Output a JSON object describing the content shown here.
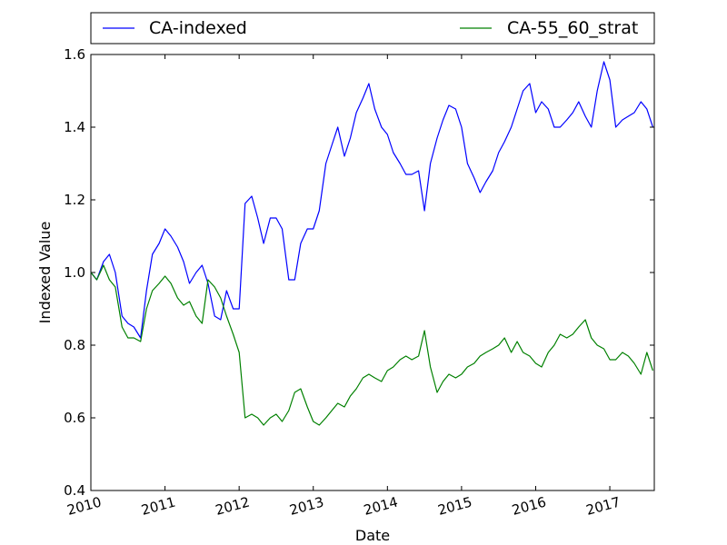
{
  "chart_data": {
    "type": "line",
    "xlabel": "Date",
    "ylabel": "Indexed Value",
    "xlim": [
      2010.0,
      2017.6
    ],
    "ylim": [
      0.4,
      1.6
    ],
    "x_ticks": [
      2010,
      2011,
      2012,
      2013,
      2014,
      2015,
      2016,
      2017
    ],
    "x_tick_labels": [
      "2010",
      "2011",
      "2012",
      "2013",
      "2014",
      "2015",
      "2016",
      "2017"
    ],
    "y_ticks": [
      0.4,
      0.6,
      0.8,
      1.0,
      1.2,
      1.4,
      1.6
    ],
    "y_tick_labels": [
      "0.4",
      "0.6",
      "0.8",
      "1.0",
      "1.2",
      "1.4",
      "1.6"
    ],
    "grid": false,
    "legend_position": "top",
    "series": [
      {
        "name": "CA-indexed",
        "color": "#0000ff",
        "x": [
          2010.0,
          2010.08,
          2010.17,
          2010.25,
          2010.33,
          2010.42,
          2010.5,
          2010.58,
          2010.67,
          2010.75,
          2010.83,
          2010.92,
          2011.0,
          2011.08,
          2011.17,
          2011.25,
          2011.33,
          2011.42,
          2011.5,
          2011.58,
          2011.67,
          2011.75,
          2011.83,
          2011.92,
          2012.0,
          2012.08,
          2012.17,
          2012.25,
          2012.33,
          2012.42,
          2012.5,
          2012.58,
          2012.67,
          2012.75,
          2012.83,
          2012.92,
          2013.0,
          2013.08,
          2013.17,
          2013.25,
          2013.33,
          2013.42,
          2013.5,
          2013.58,
          2013.67,
          2013.75,
          2013.83,
          2013.92,
          2014.0,
          2014.08,
          2014.17,
          2014.25,
          2014.33,
          2014.42,
          2014.5,
          2014.58,
          2014.67,
          2014.75,
          2014.83,
          2014.92,
          2015.0,
          2015.08,
          2015.17,
          2015.25,
          2015.33,
          2015.42,
          2015.5,
          2015.58,
          2015.67,
          2015.75,
          2015.83,
          2015.92,
          2016.0,
          2016.08,
          2016.17,
          2016.25,
          2016.33,
          2016.42,
          2016.5,
          2016.58,
          2016.67,
          2016.75,
          2016.83,
          2016.92,
          2017.0,
          2017.08,
          2017.17,
          2017.25,
          2017.33,
          2017.42,
          2017.5,
          2017.58
        ],
        "y": [
          1.0,
          0.98,
          1.03,
          1.05,
          1.0,
          0.88,
          0.86,
          0.85,
          0.82,
          0.95,
          1.05,
          1.08,
          1.12,
          1.1,
          1.07,
          1.03,
          0.97,
          1.0,
          1.02,
          0.97,
          0.88,
          0.87,
          0.95,
          0.9,
          0.9,
          1.19,
          1.21,
          1.15,
          1.08,
          1.15,
          1.15,
          1.12,
          0.98,
          0.98,
          1.08,
          1.12,
          1.12,
          1.17,
          1.3,
          1.35,
          1.4,
          1.32,
          1.37,
          1.44,
          1.48,
          1.52,
          1.45,
          1.4,
          1.38,
          1.33,
          1.3,
          1.27,
          1.27,
          1.28,
          1.17,
          1.3,
          1.37,
          1.42,
          1.46,
          1.45,
          1.4,
          1.3,
          1.26,
          1.22,
          1.25,
          1.28,
          1.33,
          1.36,
          1.4,
          1.45,
          1.5,
          1.52,
          1.44,
          1.47,
          1.45,
          1.4,
          1.4,
          1.42,
          1.44,
          1.47,
          1.43,
          1.4,
          1.5,
          1.58,
          1.53,
          1.4,
          1.42,
          1.43,
          1.44,
          1.47,
          1.45,
          1.4
        ],
        "y_note": "placeholder"
      },
      {
        "name": "CA-55_60_strat",
        "color": "#008000",
        "x": [
          2010.0,
          2010.08,
          2010.17,
          2010.25,
          2010.33,
          2010.42,
          2010.5,
          2010.58,
          2010.67,
          2010.75,
          2010.83,
          2010.92,
          2011.0,
          2011.08,
          2011.17,
          2011.25,
          2011.33,
          2011.42,
          2011.5,
          2011.58,
          2011.67,
          2011.75,
          2011.83,
          2011.92,
          2012.0,
          2012.08,
          2012.17,
          2012.25,
          2012.33,
          2012.42,
          2012.5,
          2012.58,
          2012.67,
          2012.75,
          2012.83,
          2012.92,
          2013.0,
          2013.08,
          2013.17,
          2013.25,
          2013.33,
          2013.42,
          2013.5,
          2013.58,
          2013.67,
          2013.75,
          2013.83,
          2013.92,
          2014.0,
          2014.08,
          2014.17,
          2014.25,
          2014.33,
          2014.42,
          2014.5,
          2014.58,
          2014.67,
          2014.75,
          2014.83,
          2014.92,
          2015.0,
          2015.08,
          2015.17,
          2015.25,
          2015.33,
          2015.42,
          2015.5,
          2015.58,
          2015.67,
          2015.75,
          2015.83,
          2015.92,
          2016.0,
          2016.08,
          2016.17,
          2016.25,
          2016.33,
          2016.42,
          2016.5,
          2016.58,
          2016.67,
          2016.75,
          2016.83,
          2016.92,
          2017.0,
          2017.08,
          2017.17,
          2017.25,
          2017.33,
          2017.42,
          2017.5,
          2017.58
        ],
        "y": [
          1.0,
          0.98,
          1.02,
          0.98,
          0.96,
          0.85,
          0.82,
          0.82,
          0.81,
          0.9,
          0.95,
          0.97,
          0.99,
          0.97,
          0.93,
          0.91,
          0.92,
          0.88,
          0.86,
          0.98,
          0.96,
          0.93,
          0.88,
          0.83,
          0.78,
          0.6,
          0.61,
          0.6,
          0.58,
          0.6,
          0.61,
          0.59,
          0.62,
          0.67,
          0.68,
          0.63,
          0.59,
          0.58,
          0.6,
          0.62,
          0.64,
          0.63,
          0.66,
          0.68,
          0.71,
          0.72,
          0.71,
          0.7,
          0.73,
          0.74,
          0.76,
          0.77,
          0.76,
          0.77,
          0.84,
          0.74,
          0.67,
          0.7,
          0.72,
          0.71,
          0.72,
          0.74,
          0.75,
          0.77,
          0.78,
          0.79,
          0.8,
          0.82,
          0.78,
          0.81,
          0.78,
          0.77,
          0.75,
          0.74,
          0.78,
          0.8,
          0.83,
          0.82,
          0.83,
          0.85,
          0.87,
          0.82,
          0.8,
          0.79,
          0.76,
          0.76,
          0.78,
          0.77,
          0.75,
          0.72,
          0.78,
          0.73
        ]
      }
    ]
  }
}
